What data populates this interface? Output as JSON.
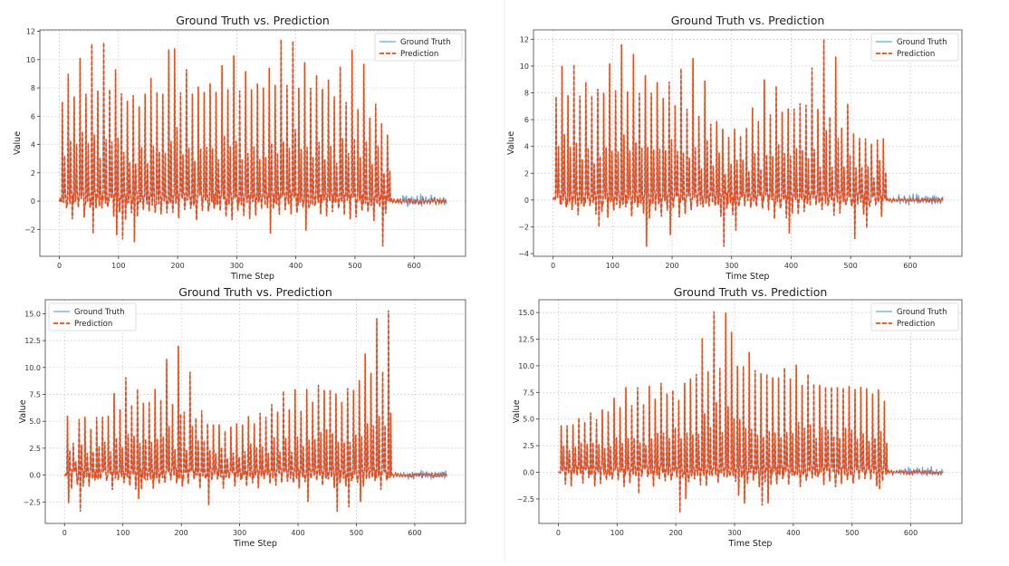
{
  "colors": {
    "ground_truth": "#5aaaf0",
    "prediction": "#ff4500",
    "grid": "#cccccc"
  },
  "chart_data": [
    {
      "type": "line",
      "title": "Ground Truth vs. Prediction",
      "xlabel": "Time Step",
      "ylabel": "Value",
      "xlim": [
        -33,
        687
      ],
      "ylim": [
        -3.9,
        12.1
      ],
      "xticks": [
        0,
        100,
        200,
        300,
        400,
        500,
        600
      ],
      "yticks": [
        -2,
        0,
        2,
        4,
        6,
        8,
        10,
        12
      ],
      "ytick_labels": [
        "−2",
        "0",
        "2",
        "4",
        "6",
        "8",
        "10",
        "12"
      ],
      "grid": true,
      "legend": "top-right",
      "series": [
        {
          "name": "Ground Truth",
          "style": "solid"
        },
        {
          "name": "Prediction",
          "style": "dashed"
        }
      ],
      "x_range": [
        0,
        655
      ],
      "spike_x_start": 5,
      "spike_x_step": 10,
      "peaks": [
        7.0,
        9.0,
        7.4,
        10.1,
        7.6,
        11.1,
        7.8,
        11.2,
        7.9,
        9.3,
        7.6,
        7.1,
        7.5,
        6.7,
        7.6,
        8.7,
        7.7,
        7.6,
        10.7,
        10.8,
        7.7,
        9.3,
        7.6,
        8.1,
        7.7,
        8.3,
        7.7,
        9.6,
        7.9,
        10.3,
        7.8,
        9.2,
        7.9,
        8.3,
        8.0,
        9.4,
        8.2,
        11.4,
        8.2,
        11.3,
        8.0,
        9.8,
        8.0,
        8.9,
        7.9,
        8.6,
        7.4,
        9.5,
        7.0,
        10.7,
        6.5,
        9.7,
        5.9,
        6.9,
        5.5,
        4.7
      ],
      "troughs": [
        [
          55,
          -2.3
        ],
        [
          95,
          -2.4
        ],
        [
          105,
          -2.7
        ],
        [
          125,
          -2.9
        ],
        [
          355,
          -2.3
        ],
        [
          415,
          -2.1
        ],
        [
          545,
          -3.2
        ]
      ]
    },
    {
      "type": "line",
      "title": "Ground Truth vs. Prediction",
      "xlabel": "Time Step",
      "ylabel": "Value",
      "xlim": [
        -33,
        687
      ],
      "ylim": [
        -4.2,
        12.7
      ],
      "xticks": [
        0,
        100,
        200,
        300,
        400,
        500,
        600
      ],
      "yticks": [
        -4,
        -2,
        0,
        2,
        4,
        6,
        8,
        10,
        12
      ],
      "ytick_labels": [
        "−4",
        "−2",
        "0",
        "2",
        "4",
        "6",
        "8",
        "10",
        "12"
      ],
      "grid": true,
      "legend": "top-right",
      "series": [
        {
          "name": "Ground Truth",
          "style": "solid"
        },
        {
          "name": "Prediction",
          "style": "dashed"
        }
      ],
      "x_range": [
        0,
        655
      ],
      "spike_x_start": 5,
      "spike_x_step": 10,
      "peaks": [
        7.7,
        10.0,
        7.8,
        10.1,
        7.8,
        8.8,
        7.8,
        8.3,
        8.0,
        10.2,
        8.2,
        11.6,
        8.1,
        10.9,
        8.0,
        9.3,
        8.0,
        8.8,
        7.6,
        8.8,
        7.1,
        9.8,
        6.8,
        10.6,
        6.3,
        8.9,
        5.7,
        5.9,
        5.3,
        4.7,
        5.3,
        4.8,
        5.4,
        6.9,
        5.9,
        9.0,
        6.4,
        8.5,
        6.6,
        6.8,
        6.8,
        7.2,
        7.1,
        9.9,
        6.8,
        12.0,
        6.2,
        10.7,
        5.4,
        7.2,
        5.0,
        4.6,
        4.6,
        4.2,
        4.5,
        4.6
      ],
      "troughs": [
        [
          75,
          -2.0
        ],
        [
          155,
          -3.5
        ],
        [
          195,
          -2.6
        ],
        [
          285,
          -3.5
        ],
        [
          305,
          -2.3
        ],
        [
          395,
          -2.5
        ],
        [
          505,
          -2.9
        ],
        [
          525,
          -2.1
        ]
      ]
    },
    {
      "type": "line",
      "title": "Ground Truth vs. Prediction",
      "xlabel": "Time Step",
      "ylabel": "Value",
      "xlim": [
        -33,
        687
      ],
      "ylim": [
        -4.5,
        16.3
      ],
      "xticks": [
        0,
        100,
        200,
        300,
        400,
        500,
        600
      ],
      "yticks": [
        -2.5,
        0,
        2.5,
        5,
        7.5,
        10,
        12.5,
        15
      ],
      "ytick_labels": [
        "−2.5",
        "0.0",
        "2.5",
        "5.0",
        "7.5",
        "10.0",
        "12.5",
        "15.0"
      ],
      "grid": true,
      "legend": "top-left",
      "series": [
        {
          "name": "Ground Truth",
          "style": "solid"
        },
        {
          "name": "Prediction",
          "style": "dashed"
        }
      ],
      "x_range": [
        0,
        655
      ],
      "spike_x_start": 5,
      "spike_x_step": 10,
      "peaks": [
        5.5,
        3.0,
        5.2,
        5.4,
        4.3,
        5.4,
        5.4,
        5.5,
        7.6,
        6.1,
        9.1,
        6.5,
        8.0,
        6.7,
        6.8,
        8.0,
        7.0,
        10.8,
        6.6,
        12.0,
        5.9,
        9.6,
        5.3,
        6.0,
        4.8,
        4.7,
        4.7,
        4.1,
        4.5,
        4.8,
        4.7,
        5.5,
        4.8,
        5.8,
        5.4,
        6.6,
        5.9,
        7.8,
        6.1,
        8.0,
        6.0,
        8.0,
        6.8,
        8.4,
        7.9,
        7.9,
        7.6,
        6.8,
        8.1,
        7.9,
        8.8,
        11.3,
        9.5,
        14.6,
        9.6,
        15.3
      ],
      "troughs": [
        [
          5,
          -2.6
        ],
        [
          25,
          -3.4
        ],
        [
          125,
          -2.2
        ],
        [
          245,
          -2.8
        ],
        [
          415,
          -2.5
        ],
        [
          465,
          -3.4
        ],
        [
          485,
          -3.0
        ],
        [
          505,
          -2.5
        ]
      ]
    },
    {
      "type": "line",
      "title": "Ground Truth vs. Prediction",
      "xlabel": "Time Step",
      "ylabel": "Value",
      "xlim": [
        -33,
        687
      ],
      "ylim": [
        -4.8,
        16.2
      ],
      "xticks": [
        0,
        100,
        200,
        300,
        400,
        500,
        600
      ],
      "yticks": [
        -2.5,
        0,
        2.5,
        5,
        7.5,
        10,
        12.5,
        15
      ],
      "ytick_labels": [
        "−2.5",
        "0.0",
        "2.5",
        "5.0",
        "7.5",
        "10.0",
        "12.5",
        "15.0"
      ],
      "grid": true,
      "legend": "top-right",
      "series": [
        {
          "name": "Ground Truth",
          "style": "solid"
        },
        {
          "name": "Prediction",
          "style": "dashed"
        }
      ],
      "x_range": [
        0,
        655
      ],
      "spike_x_start": 5,
      "spike_x_step": 10,
      "peaks": [
        4.4,
        4.4,
        4.5,
        5.1,
        4.7,
        5.6,
        5.0,
        5.9,
        5.7,
        7.0,
        6.1,
        8.0,
        6.3,
        8.0,
        6.4,
        8.1,
        6.9,
        8.4,
        7.4,
        7.7,
        6.8,
        8.4,
        8.8,
        9.2,
        12.6,
        9.5,
        15.1,
        9.8,
        15.0,
        13.2,
        10.0,
        10.0,
        11.3,
        9.6,
        9.3,
        9.2,
        8.9,
        8.9,
        9.8,
        8.8,
        10.1,
        8.2,
        9.2,
        8.3,
        8.2,
        8.0,
        8.0,
        8.0,
        7.9,
        8.1,
        7.8,
        8.0,
        7.9,
        7.4,
        7.8,
        6.7
      ],
      "troughs": [
        [
          135,
          -2.0
        ],
        [
          205,
          -3.8
        ],
        [
          215,
          -2.5
        ],
        [
          305,
          -2.2
        ],
        [
          315,
          -2.9
        ],
        [
          345,
          -3.1
        ],
        [
          355,
          -2.9
        ],
        [
          545,
          -1.6
        ]
      ]
    }
  ]
}
